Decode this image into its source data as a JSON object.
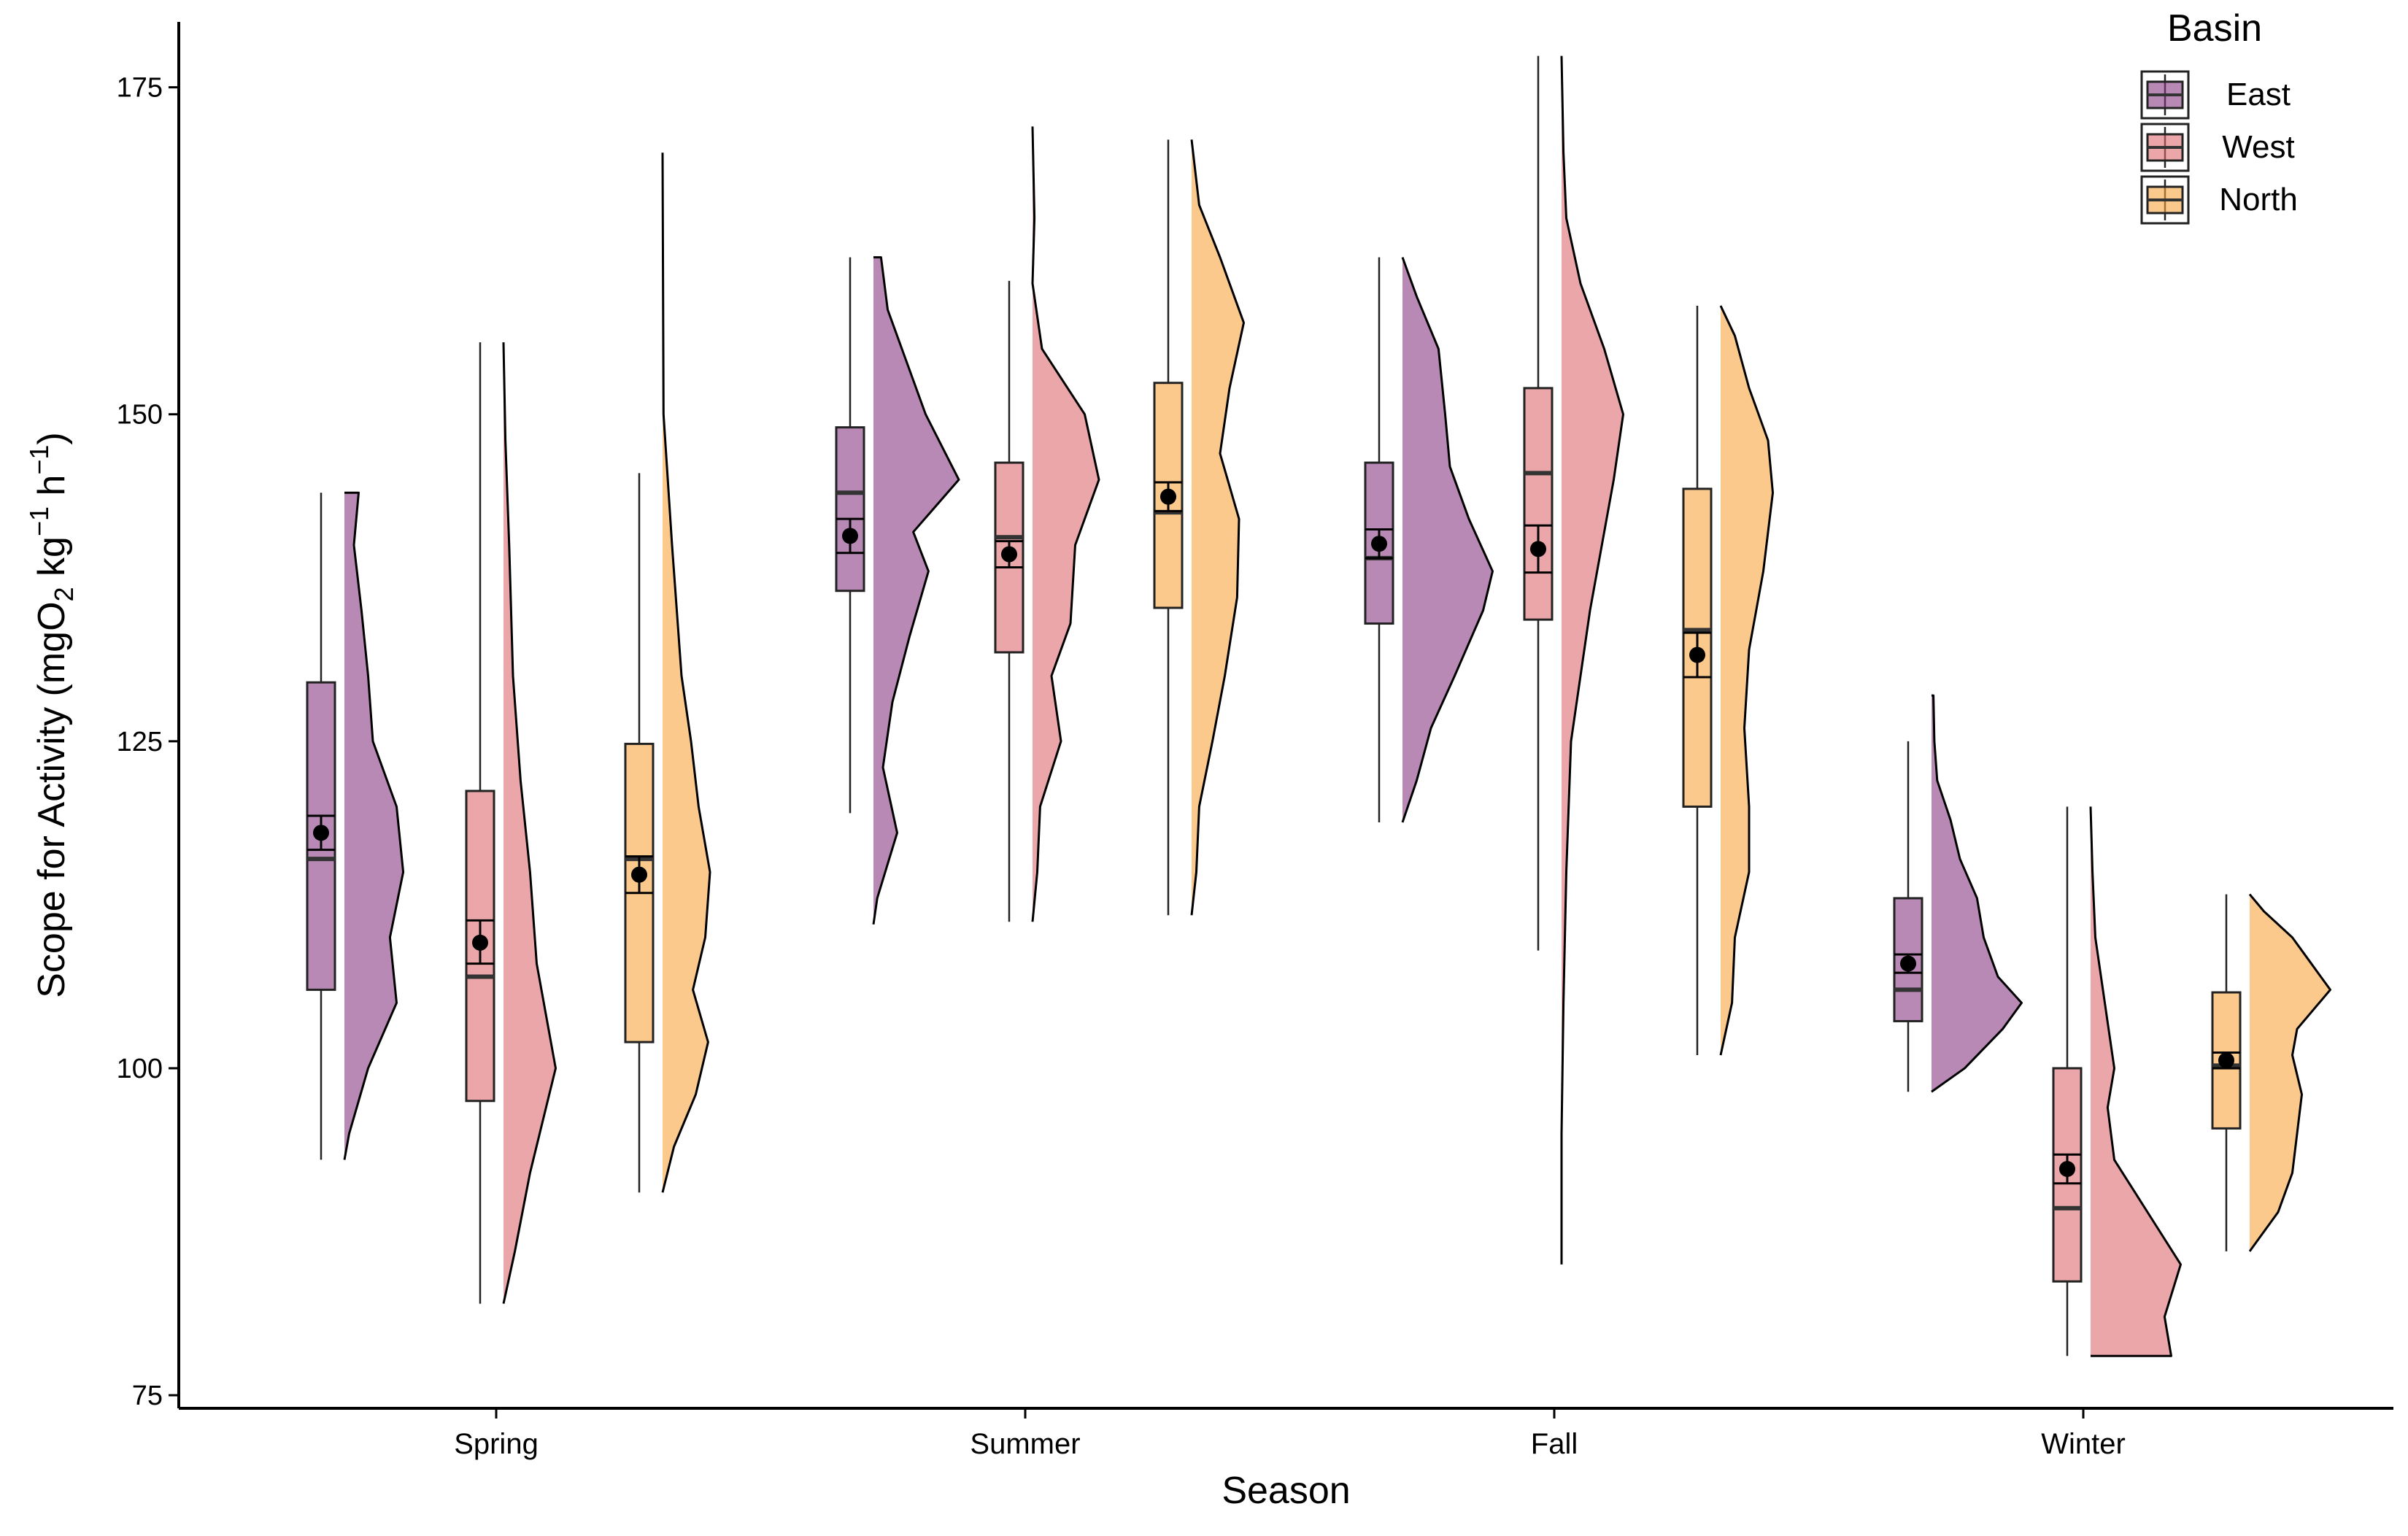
{
  "chart_data": {
    "type": "raincloud",
    "xlabel": "Season",
    "ylabel_parts": {
      "pre": "Scope for Activity (mgO",
      "sub": "2",
      "mid1": " kg",
      "sup1": "−1",
      "mid2": " h",
      "sup2": "−1",
      "post": ")"
    },
    "categories": [
      "Spring",
      "Summer",
      "Fall",
      "Winter"
    ],
    "ylim": [
      74,
      180
    ],
    "yticks": [
      75,
      100,
      125,
      150,
      175
    ],
    "legend": {
      "title": "Basin",
      "position": "top-right"
    },
    "series": [
      {
        "name": "East",
        "color": "#8b3a84",
        "boxes": [
          {
            "min": 93,
            "q1": 106,
            "median": 116,
            "q3": 129.5,
            "max": 144,
            "mean": 118,
            "ci": [
              116.7,
              119.3
            ],
            "density": [
              [
                93,
                0
              ],
              [
                95,
                0.05
              ],
              [
                100,
                0.25
              ],
              [
                105,
                0.55
              ],
              [
                110,
                0.48
              ],
              [
                115,
                0.62
              ],
              [
                120,
                0.55
              ],
              [
                125,
                0.3
              ],
              [
                130,
                0.25
              ],
              [
                135,
                0.18
              ],
              [
                140,
                0.1
              ],
              [
                144,
                0.15
              ]
            ]
          },
          {
            "min": 119.5,
            "q1": 136.5,
            "median": 144,
            "q3": 149,
            "max": 162,
            "mean": 140.7,
            "ci": [
              139.4,
              142
            ],
            "density": [
              [
                111,
                0
              ],
              [
                113,
                0.04
              ],
              [
                118,
                0.25
              ],
              [
                123,
                0.1
              ],
              [
                128,
                0.2
              ],
              [
                133,
                0.38
              ],
              [
                138,
                0.58
              ],
              [
                141,
                0.42
              ],
              [
                145,
                0.9
              ],
              [
                150,
                0.55
              ],
              [
                155,
                0.3
              ],
              [
                158,
                0.15
              ],
              [
                162,
                0.08
              ]
            ]
          },
          {
            "min": 118.8,
            "q1": 134,
            "median": 139,
            "q3": 146.3,
            "max": 162,
            "mean": 140.1,
            "ci": [
              139,
              141.2
            ],
            "density": [
              [
                118.8,
                0
              ],
              [
                122,
                0.15
              ],
              [
                126,
                0.3
              ],
              [
                130,
                0.55
              ],
              [
                135,
                0.85
              ],
              [
                138,
                0.95
              ],
              [
                142,
                0.7
              ],
              [
                146,
                0.5
              ],
              [
                150,
                0.45
              ],
              [
                155,
                0.38
              ],
              [
                159,
                0.15
              ],
              [
                162,
                0.0
              ]
            ]
          },
          {
            "min": 98.2,
            "q1": 103.6,
            "median": 106,
            "q3": 113,
            "max": 125,
            "mean": 108,
            "ci": [
              107.3,
              108.7
            ],
            "density": [
              [
                98.2,
                0
              ],
              [
                100,
                0.35
              ],
              [
                103,
                0.75
              ],
              [
                105,
                0.95
              ],
              [
                107,
                0.7
              ],
              [
                110,
                0.55
              ],
              [
                113,
                0.48
              ],
              [
                116,
                0.3
              ],
              [
                119,
                0.2
              ],
              [
                122,
                0.06
              ],
              [
                125,
                0.03
              ],
              [
                128.5,
                0.02
              ]
            ]
          }
        ]
      },
      {
        "name": "West",
        "color": "#de6b6f",
        "boxes": [
          {
            "min": 82,
            "q1": 97.5,
            "median": 107,
            "q3": 121.2,
            "max": 155.5,
            "mean": 109.6,
            "ci": [
              108,
              111.3
            ],
            "density": [
              [
                82,
                0
              ],
              [
                86,
                0.12
              ],
              [
                92,
                0.28
              ],
              [
                100,
                0.55
              ],
              [
                108,
                0.35
              ],
              [
                115,
                0.28
              ],
              [
                122,
                0.18
              ],
              [
                130,
                0.1
              ],
              [
                140,
                0.06
              ],
              [
                148,
                0.02
              ],
              [
                155.5,
                0.0
              ]
            ]
          },
          {
            "min": 111.2,
            "q1": 131.8,
            "median": 140.6,
            "q3": 146.3,
            "max": 160.2,
            "mean": 139.3,
            "ci": [
              138.3,
              140.3
            ],
            "density": [
              [
                111.2,
                0
              ],
              [
                115,
                0.05
              ],
              [
                120,
                0.08
              ],
              [
                125,
                0.3
              ],
              [
                130,
                0.2
              ],
              [
                134,
                0.4
              ],
              [
                140,
                0.45
              ],
              [
                145,
                0.7
              ],
              [
                150,
                0.55
              ],
              [
                155,
                0.1
              ],
              [
                160,
                0.0
              ],
              [
                165,
                0.02
              ],
              [
                172,
                0.0
              ]
            ]
          },
          {
            "min": 109,
            "q1": 134.3,
            "median": 145.5,
            "q3": 152,
            "max": 177.4,
            "mean": 139.7,
            "ci": [
              137.9,
              141.5
            ],
            "density": [
              [
                85,
                0
              ],
              [
                95,
                0.0
              ],
              [
                105,
                0.02
              ],
              [
                115,
                0.05
              ],
              [
                125,
                0.1
              ],
              [
                135,
                0.3
              ],
              [
                145,
                0.55
              ],
              [
                150,
                0.65
              ],
              [
                155,
                0.45
              ],
              [
                160,
                0.2
              ],
              [
                165,
                0.05
              ],
              [
                170,
                0.02
              ],
              [
                177.4,
                0.0
              ]
            ]
          },
          {
            "min": 78,
            "q1": 83.7,
            "median": 89.3,
            "q3": 100,
            "max": 120,
            "mean": 92.3,
            "ci": [
              91.2,
              93.4
            ],
            "density": [
              [
                78,
                0.85
              ],
              [
                81,
                0.78
              ],
              [
                85,
                0.95
              ],
              [
                89,
                0.6
              ],
              [
                93,
                0.25
              ],
              [
                97,
                0.18
              ],
              [
                100,
                0.25
              ],
              [
                105,
                0.15
              ],
              [
                110,
                0.05
              ],
              [
                115,
                0.02
              ],
              [
                120,
                0.0
              ]
            ]
          }
        ]
      },
      {
        "name": "North",
        "color": "#f8a53f",
        "boxes": [
          {
            "min": 90.5,
            "q1": 102,
            "median": 116,
            "q3": 124.8,
            "max": 145.5,
            "mean": 114.8,
            "ci": [
              113.4,
              116.2
            ],
            "density": [
              [
                90.5,
                0
              ],
              [
                94,
                0.12
              ],
              [
                98,
                0.35
              ],
              [
                102,
                0.48
              ],
              [
                106,
                0.32
              ],
              [
                110,
                0.45
              ],
              [
                115,
                0.5
              ],
              [
                120,
                0.38
              ],
              [
                125,
                0.3
              ],
              [
                130,
                0.2
              ],
              [
                140,
                0.1
              ],
              [
                150,
                0.01
              ],
              [
                170,
                0.0
              ]
            ]
          },
          {
            "min": 111.7,
            "q1": 135.2,
            "median": 142.5,
            "q3": 152.4,
            "max": 171,
            "mean": 143.7,
            "ci": [
              142.6,
              144.8
            ],
            "density": [
              [
                111.7,
                0
              ],
              [
                115,
                0.05
              ],
              [
                120,
                0.08
              ],
              [
                125,
                0.22
              ],
              [
                130,
                0.35
              ],
              [
                136,
                0.48
              ],
              [
                142,
                0.5
              ],
              [
                147,
                0.3
              ],
              [
                152,
                0.4
              ],
              [
                157,
                0.55
              ],
              [
                162,
                0.3
              ],
              [
                166,
                0.08
              ],
              [
                171,
                0.0
              ]
            ]
          },
          {
            "min": 101,
            "q1": 120,
            "median": 133.5,
            "q3": 144.3,
            "max": 158.3,
            "mean": 131.6,
            "ci": [
              129.9,
              133.3
            ],
            "density": [
              [
                101,
                0
              ],
              [
                105,
                0.12
              ],
              [
                110,
                0.15
              ],
              [
                115,
                0.3
              ],
              [
                120,
                0.3
              ],
              [
                126,
                0.25
              ],
              [
                132,
                0.3
              ],
              [
                138,
                0.45
              ],
              [
                144,
                0.55
              ],
              [
                148,
                0.5
              ],
              [
                152,
                0.3
              ],
              [
                156,
                0.15
              ],
              [
                158.3,
                0.0
              ]
            ]
          },
          {
            "min": 86,
            "q1": 95.4,
            "median": 100.2,
            "q3": 105.8,
            "max": 113.3,
            "mean": 100.6,
            "ci": [
              100,
              101.2
            ],
            "density": [
              [
                86,
                0
              ],
              [
                89,
                0.3
              ],
              [
                92,
                0.45
              ],
              [
                95,
                0.5
              ],
              [
                98,
                0.55
              ],
              [
                101,
                0.45
              ],
              [
                103,
                0.5
              ],
              [
                106,
                0.85
              ],
              [
                108,
                0.65
              ],
              [
                110,
                0.45
              ],
              [
                112,
                0.15
              ],
              [
                113.3,
                0.0
              ]
            ]
          }
        ]
      }
    ]
  }
}
